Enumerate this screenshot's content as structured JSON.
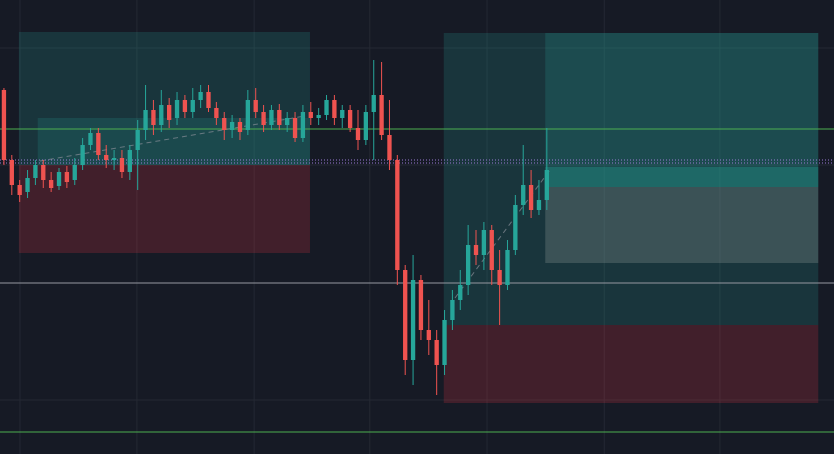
{
  "chart_data": {
    "type": "candlestick",
    "background": "#161a25",
    "grid_color": "#242833",
    "up_color": "#26a69a",
    "down_color": "#ef5350",
    "xlim": [
      -0.5,
      105.5
    ],
    "ylim": [
      0,
      454
    ],
    "xticks": [
      2.04,
      16.9,
      31.8,
      46.5,
      61.4,
      76.3,
      91.0
    ],
    "yticks": [
      54,
      171,
      289,
      406
    ],
    "grid": true,
    "candles": [
      [
        364,
        366,
        289,
        294
      ],
      [
        294,
        299,
        259,
        269
      ],
      [
        269,
        274,
        252,
        259
      ],
      [
        262,
        284,
        256,
        276
      ],
      [
        276,
        294,
        269,
        289
      ],
      [
        289,
        294,
        266,
        274
      ],
      [
        274,
        282,
        262,
        266
      ],
      [
        268,
        286,
        264,
        282
      ],
      [
        282,
        288,
        266,
        272
      ],
      [
        274,
        296,
        269,
        289
      ],
      [
        289,
        316,
        284,
        309
      ],
      [
        309,
        326,
        304,
        321
      ],
      [
        321,
        326,
        294,
        299
      ],
      [
        299,
        309,
        286,
        294
      ],
      [
        294,
        304,
        284,
        296
      ],
      [
        296,
        304,
        276,
        282
      ],
      [
        282,
        309,
        274,
        304
      ],
      [
        304,
        334,
        264,
        324
      ],
      [
        324,
        369,
        314,
        344
      ],
      [
        344,
        354,
        319,
        329
      ],
      [
        329,
        364,
        322,
        349
      ],
      [
        349,
        356,
        326,
        334
      ],
      [
        336,
        362,
        329,
        354
      ],
      [
        354,
        359,
        336,
        342
      ],
      [
        342,
        366,
        336,
        354
      ],
      [
        354,
        369,
        346,
        362
      ],
      [
        362,
        369,
        342,
        346
      ],
      [
        346,
        352,
        329,
        336
      ],
      [
        336,
        342,
        314,
        324
      ],
      [
        324,
        339,
        316,
        332
      ],
      [
        332,
        336,
        314,
        322
      ],
      [
        324,
        364,
        319,
        354
      ],
      [
        354,
        366,
        336,
        342
      ],
      [
        342,
        349,
        322,
        329
      ],
      [
        329,
        349,
        324,
        344
      ],
      [
        344,
        350,
        324,
        329
      ],
      [
        329,
        342,
        322,
        336
      ],
      [
        336,
        342,
        312,
        316
      ],
      [
        316,
        349,
        312,
        342
      ],
      [
        342,
        352,
        329,
        336
      ],
      [
        336,
        346,
        329,
        339
      ],
      [
        339,
        359,
        334,
        354
      ],
      [
        354,
        359,
        329,
        336
      ],
      [
        336,
        349,
        326,
        344
      ],
      [
        344,
        349,
        322,
        326
      ],
      [
        326,
        344,
        304,
        314
      ],
      [
        314,
        349,
        309,
        342
      ],
      [
        342,
        394,
        294,
        359
      ],
      [
        359,
        392,
        314,
        319
      ],
      [
        319,
        354,
        284,
        294
      ],
      [
        294,
        299,
        169,
        184
      ],
      [
        184,
        189,
        79,
        94
      ],
      [
        94,
        199,
        69,
        174
      ],
      [
        174,
        179,
        114,
        124
      ],
      [
        124,
        154,
        99,
        114
      ],
      [
        114,
        124,
        59,
        89
      ],
      [
        89,
        144,
        79,
        134
      ],
      [
        134,
        164,
        124,
        154
      ],
      [
        154,
        184,
        144,
        169
      ],
      [
        169,
        229,
        159,
        209
      ],
      [
        209,
        224,
        189,
        199
      ],
      [
        199,
        232,
        184,
        224
      ],
      [
        224,
        229,
        169,
        184
      ],
      [
        184,
        204,
        129,
        169
      ],
      [
        169,
        214,
        164,
        204
      ],
      [
        204,
        259,
        199,
        249
      ],
      [
        249,
        309,
        239,
        269
      ],
      [
        269,
        284,
        236,
        244
      ],
      [
        244,
        274,
        239,
        254
      ],
      [
        254,
        326,
        244,
        284
      ]
    ],
    "zones": [
      {
        "x": [
          1.9,
          38.9
        ],
        "y": [
          289,
          422
        ],
        "color": "rgba(38,166,154,0.2)"
      },
      {
        "x": [
          1.9,
          38.9
        ],
        "y": [
          201,
          289
        ],
        "color": "rgba(242,54,69,0.2)"
      },
      {
        "x": [
          4.3,
          38.9
        ],
        "y": [
          289,
          336
        ],
        "color": "rgba(38,166,154,0.18)"
      },
      {
        "x": [
          55.9,
          103.5
        ],
        "y": [
          129,
          421
        ],
        "color": "rgba(38,166,154,0.2)"
      },
      {
        "x": [
          55.9,
          103.5
        ],
        "y": [
          51,
          129
        ],
        "color": "rgba(242,54,69,0.2)"
      },
      {
        "x": [
          68.8,
          103.5
        ],
        "y": [
          287,
          421
        ],
        "color": "rgba(38,166,154,0.2)"
      },
      {
        "x": [
          68.8,
          103.5
        ],
        "y": [
          267,
          287
        ],
        "color": "rgba(38,166,154,0.45)"
      },
      {
        "x": [
          68.8,
          103.5
        ],
        "y": [
          191,
          267
        ],
        "color": "rgba(140,150,150,0.3)"
      }
    ],
    "hlines": [
      {
        "value": 325,
        "color": "#4caf50",
        "style": "solid"
      },
      {
        "value": 294,
        "color": "#9c7bd6",
        "style": "dotted"
      },
      {
        "value": 291,
        "color": "#9c7bd6",
        "style": "dotted"
      },
      {
        "value": 171,
        "color": "#9598a1",
        "style": "solid"
      },
      {
        "value": 22,
        "color": "#4caf50",
        "style": "solid"
      }
    ]
  }
}
